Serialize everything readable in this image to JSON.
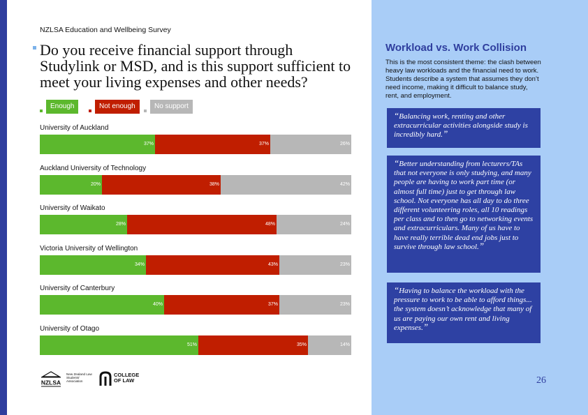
{
  "survey_title": "NZLSA Education and Wellbeing Survey",
  "question": "Do you receive financial support through Studylink or MSD, and is this support sufficient to meet your living expenses and other needs?",
  "colors": {
    "enough": "#5cb82d",
    "not_enough": "#c01e00",
    "no_support": "#b7b7b7",
    "accent": "#2f3e9e",
    "panel": "#a9cdf7",
    "quote_box": "#2e41a3"
  },
  "legend": [
    "Enough",
    "Not enough",
    "No support"
  ],
  "chart_data": {
    "type": "bar",
    "orientation": "horizontal",
    "stacked": true,
    "categories": [
      "University of Auckland",
      "Auckland University of Technology",
      "University of Waikato",
      "Victoria University of Wellington",
      "University of Canterbury",
      "University of Otago"
    ],
    "series": [
      {
        "name": "Enough",
        "values": [
          37,
          20,
          28,
          34,
          40,
          51
        ],
        "labels": [
          "37%",
          "20%",
          "28%",
          "34%",
          "40%",
          "51%"
        ]
      },
      {
        "name": "Not enough",
        "values": [
          37,
          38,
          48,
          43,
          37,
          35
        ],
        "labels": [
          "37%",
          "38%",
          "48%",
          "43%",
          "37%",
          "35%"
        ]
      },
      {
        "name": "No support",
        "values": [
          26,
          42,
          24,
          23,
          23,
          14
        ],
        "labels": [
          "26%",
          "42%",
          "24%",
          "23%",
          "23%",
          "14%"
        ]
      }
    ],
    "xlim": [
      0,
      100
    ],
    "legend_position": "top-left"
  },
  "logos": {
    "nzlsa_mark": "NZLSA",
    "nzlsa_text": "New Zealand Law Students' Association",
    "college_text": "COLLEGE OF LAW"
  },
  "panel": {
    "heading": "Workload vs. Work Collision",
    "body": "This is the most consistent theme: the clash between heavy law workloads and the financial need to work. Students describe a system that assumes they don’t need income, making it difficult to balance study, rent, and employment.",
    "quotes": [
      "Balancing work, renting and other extracurricular activities alongside study is incredibly hard.",
      "Better understanding from lecturers/TAs that not everyone is only studying, and many people are having to work part time (or almost full time) just to get through law school. Not everyone has all day to do three different volunteering roles, all 10 readings per class and to then go to networking events and extracurriculars. Many of us have to have really terrible dead end jobs just to survive through law school.",
      "Having to balance the workload with the pressure to work to be able to afford things... the system doesn’t acknowledge that many of us are paying our own rent and living expenses."
    ]
  },
  "page_number": "26"
}
